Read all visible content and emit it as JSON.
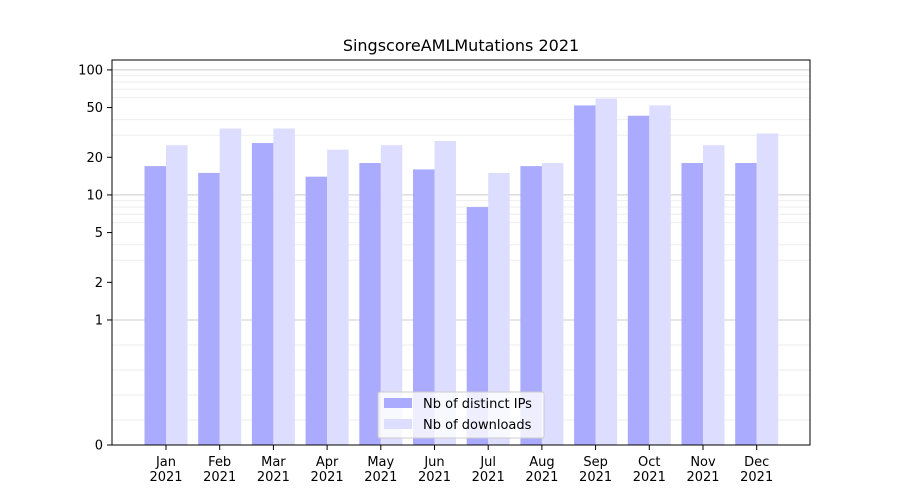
{
  "chart_data": {
    "type": "bar",
    "title": "SingscoreAMLMutations 2021",
    "xlabel": "",
    "ylabel": "",
    "y_scale": "symlog",
    "ylim": [
      0,
      120
    ],
    "yticks": [
      "0",
      "1",
      "2",
      "5",
      "10",
      "20",
      "50",
      "100"
    ],
    "categories": [
      "Jan\n2021",
      "Feb\n2021",
      "Mar\n2021",
      "Apr\n2021",
      "May\n2021",
      "Jun\n2021",
      "Jul\n2021",
      "Aug\n2021",
      "Sep\n2021",
      "Oct\n2021",
      "Nov\n2021",
      "Dec\n2021"
    ],
    "series": [
      {
        "name": "Nb of distinct IPs",
        "color": "#aaaaff",
        "values": [
          17,
          15,
          26,
          14,
          18,
          16,
          8,
          17,
          52,
          43,
          18,
          18
        ]
      },
      {
        "name": "Nb of downloads",
        "color": "#ddddff",
        "values": [
          25,
          34,
          34,
          23,
          25,
          27,
          15,
          18,
          59,
          52,
          25,
          31
        ]
      }
    ],
    "legend_position": "bottom-center",
    "grid": true
  }
}
